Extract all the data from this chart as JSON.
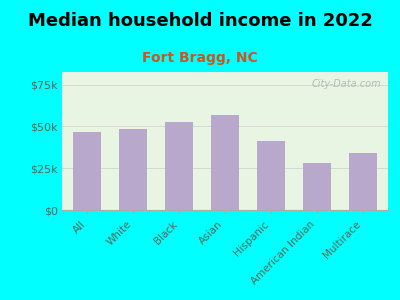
{
  "title": "Median household income in 2022",
  "subtitle": "Fort Bragg, NC",
  "categories": [
    "All",
    "White",
    "Black",
    "Asian",
    "Hispanic",
    "American Indian",
    "Multirace"
  ],
  "values": [
    46500,
    48500,
    52500,
    57000,
    41000,
    28000,
    34000
  ],
  "bar_color": "#b8a8cc",
  "background_outer": "#00ffff",
  "background_inner": "#e8f5e2",
  "title_fontsize": 13,
  "subtitle_fontsize": 10,
  "subtitle_color": "#cc5522",
  "tick_label_color": "#556655",
  "ytick_label_color": "#556655",
  "ylim": [
    0,
    82500
  ],
  "yticks": [
    0,
    25000,
    50000,
    75000
  ],
  "watermark": "City-Data.com"
}
